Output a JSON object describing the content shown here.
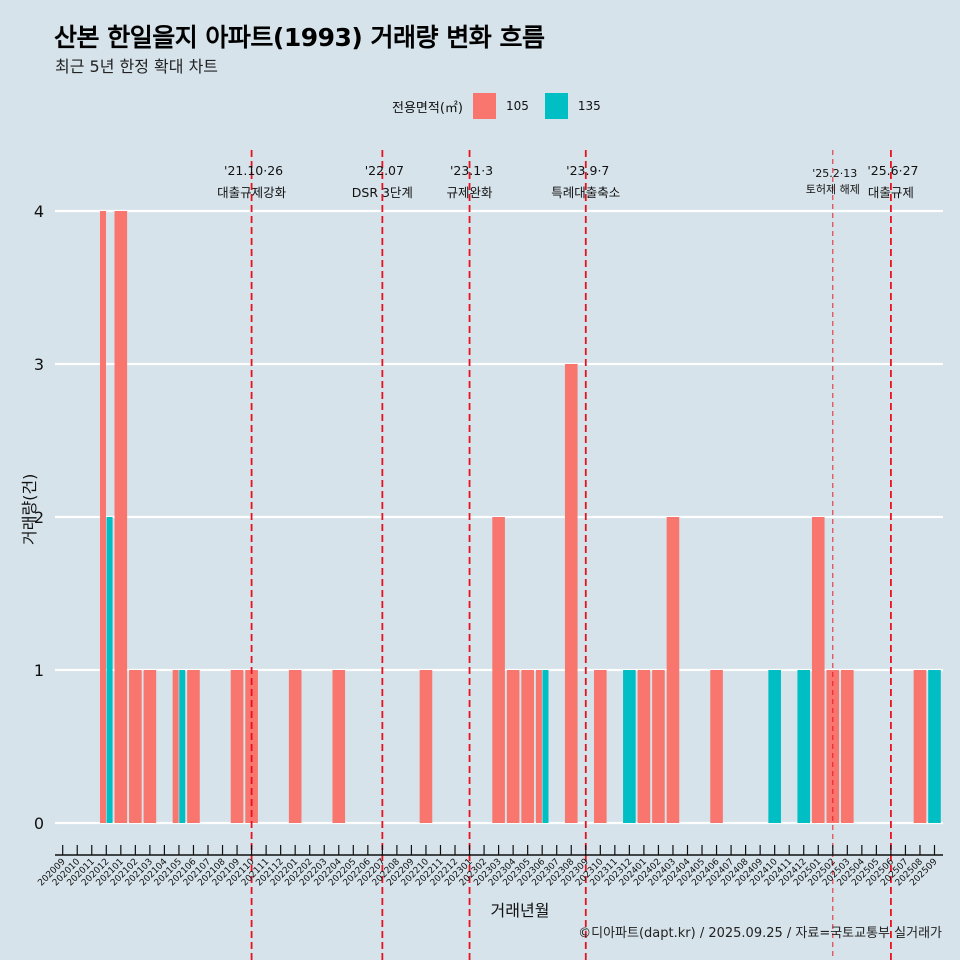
{
  "header": {
    "title": "산본 한일을지 아파트(1993) 거래량 변화 흐름",
    "subtitle": "최근 5년 한정 확대 차트"
  },
  "legend": {
    "title": "전용면적(㎡)",
    "items": [
      {
        "label": "105",
        "color": "#f8766d"
      },
      {
        "label": "135",
        "color": "#00bfc4"
      }
    ]
  },
  "footer": "©디아파트(dapt.kr) / 2025.09.25 / 자료=국토교통부 실거래가",
  "chart_data": {
    "type": "bar",
    "title": "산본 한일을지 아파트(1993) 거래량 변화 흐름",
    "subtitle": "최근 5년 한정 확대 차트",
    "xlabel": "거래년월",
    "ylabel": "거래량(건)",
    "ylim": [
      0,
      4
    ],
    "yticks": [
      0,
      1,
      2,
      3,
      4
    ],
    "grid": "horizontal",
    "legend_position": "top",
    "bar_mode": "dodge",
    "categories": [
      "202009",
      "202010",
      "202011",
      "202012",
      "202101",
      "202102",
      "202103",
      "202104",
      "202105",
      "202106",
      "202107",
      "202108",
      "202109",
      "202110",
      "202111",
      "202112",
      "202201",
      "202202",
      "202203",
      "202204",
      "202205",
      "202206",
      "202207",
      "202208",
      "202209",
      "202210",
      "202211",
      "202212",
      "202301",
      "202302",
      "202303",
      "202304",
      "202305",
      "202306",
      "202307",
      "202308",
      "202309",
      "202310",
      "202311",
      "202312",
      "202401",
      "202402",
      "202403",
      "202404",
      "202405",
      "202406",
      "202407",
      "202408",
      "202409",
      "202410",
      "202411",
      "202412",
      "202501",
      "202502",
      "202503",
      "202504",
      "202505",
      "202506",
      "202507",
      "202508",
      "202509"
    ],
    "series": [
      {
        "name": "105",
        "color": "#f8766d",
        "values": [
          0,
          0,
          0,
          4,
          4,
          1,
          1,
          0,
          1,
          1,
          0,
          0,
          1,
          1,
          0,
          0,
          1,
          0,
          0,
          1,
          0,
          0,
          0,
          0,
          0,
          1,
          0,
          0,
          0,
          0,
          2,
          1,
          1,
          1,
          0,
          3,
          0,
          1,
          0,
          0,
          1,
          1,
          2,
          0,
          0,
          1,
          0,
          0,
          0,
          0,
          0,
          0,
          2,
          1,
          1,
          0,
          0,
          0,
          0,
          1,
          0
        ]
      },
      {
        "name": "135",
        "color": "#00bfc4",
        "values": [
          0,
          0,
          0,
          2,
          0,
          0,
          0,
          0,
          1,
          0,
          0,
          0,
          0,
          0,
          0,
          0,
          0,
          0,
          0,
          0,
          0,
          0,
          0,
          0,
          0,
          0,
          0,
          0,
          0,
          0,
          0,
          0,
          0,
          1,
          0,
          0,
          0,
          0,
          0,
          1,
          0,
          0,
          0,
          0,
          0,
          0,
          0,
          0,
          0,
          1,
          0,
          1,
          0,
          0,
          0,
          0,
          0,
          0,
          0,
          0,
          1
        ]
      }
    ],
    "annotations": [
      {
        "x": "202110",
        "date": "'21.10·26",
        "label": "대출규제강화",
        "style": "major"
      },
      {
        "x": "202207",
        "date": "'22.07",
        "label": "DSR 3단계",
        "style": "major"
      },
      {
        "x": "202301",
        "date": "'23.1·3",
        "label": "규제완화",
        "style": "major"
      },
      {
        "x": "202309",
        "date": "'23.9·7",
        "label": "특례대출축소",
        "style": "major"
      },
      {
        "x": "202502",
        "date": "'25.2·13",
        "label": "토허제 해제",
        "style": "minor"
      },
      {
        "x": "202506",
        "date": "'25.6·27",
        "label": "대출규제",
        "style": "major"
      }
    ]
  }
}
